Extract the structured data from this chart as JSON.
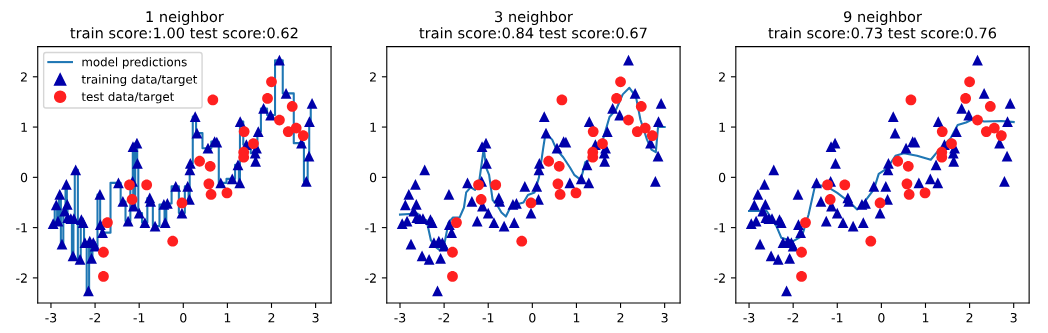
{
  "chart_data": [
    {
      "type": "scatter",
      "title": "1 neighbor\ntrain score:1.00 test score:0.62",
      "xlim": [
        -3.3,
        3.35
      ],
      "ylim": [
        -2.5,
        2.6
      ],
      "xticks": [
        -3,
        -2,
        -1,
        0,
        1,
        2,
        3
      ],
      "yticks": [
        -2,
        -1,
        0,
        1,
        2
      ],
      "grid": false,
      "legend": "top left",
      "series": [
        {
          "type": "step",
          "name": "model predictions",
          "color": "#1f77b4",
          "x": [
            -2.95,
            -2.88,
            -2.84,
            -2.8,
            -2.75,
            -2.69,
            -2.65,
            -2.63,
            -2.62,
            -2.55,
            -2.5,
            -2.48,
            -2.44,
            -2.34,
            -2.31,
            -2.27,
            -2.23,
            -2.15,
            -2.12,
            -2.08,
            -2.04,
            -2.0,
            -1.89,
            -1.88,
            -1.83,
            -1.47,
            -1.37,
            -1.25,
            -1.15,
            -1.14,
            -1.13,
            -1.05,
            -1.04,
            -1.0,
            -0.87,
            -0.76,
            -0.74,
            -0.64,
            -0.44,
            -0.41,
            -0.36,
            -0.17,
            -0.03,
            0.1,
            0.14,
            0.15,
            0.16,
            0.27,
            0.31,
            0.56,
            0.71,
            0.76,
            0.85,
            1.11,
            1.24,
            1.28,
            1.29,
            1.43,
            1.63,
            1.64,
            1.66,
            1.7,
            1.82,
            1.98,
            2.18,
            2.33,
            2.68,
            2.79,
            2.85,
            2.86,
            2.92
          ],
          "values": [
            -0.92,
            -0.55,
            -0.87,
            -0.34,
            -1.33,
            -0.67,
            -0.14,
            -0.54,
            -0.8,
            -0.82,
            -1.56,
            -0.82,
            0.15,
            -1.63,
            -0.84,
            -0.9,
            -1.3,
            -2.26,
            -1.27,
            -1.61,
            -1.3,
            -1.37,
            -0.34,
            -0.94,
            -1.1,
            -0.11,
            -0.48,
            -0.87,
            -0.08,
            0.61,
            -0.57,
            0.68,
            0.28,
            -0.71,
            -0.9,
            -0.41,
            -0.48,
            -0.97,
            -0.54,
            -0.9,
            -0.52,
            -0.18,
            -0.71,
            -0.18,
            -0.44,
            0.15,
            0.28,
            1.21,
            0.88,
            0.58,
            0.71,
            0.7,
            -0.11,
            -0.03,
            0.25,
            -0.11,
            1.11,
            0.65,
            0.48,
            0.32,
            0.58,
            0.91,
            1.37,
            1.24,
            2.33,
            1.67,
            0.68,
            -0.08,
            0.42,
            1.11,
            1.47
          ]
        },
        {
          "type": "scatter",
          "name": "training data/target",
          "color": "#0000aa",
          "marker": "triangle",
          "x": [
            -2.95,
            -2.88,
            -2.84,
            -2.8,
            -2.75,
            -2.69,
            -2.65,
            -2.63,
            -2.62,
            -2.55,
            -2.5,
            -2.48,
            -2.44,
            -2.34,
            -2.31,
            -2.27,
            -2.23,
            -2.15,
            -2.12,
            -2.08,
            -2.04,
            -2.0,
            -1.89,
            -1.88,
            -1.83,
            -1.47,
            -1.37,
            -1.25,
            -1.15,
            -1.14,
            -1.13,
            -1.05,
            -1.04,
            -1.0,
            -0.87,
            -0.76,
            -0.74,
            -0.64,
            -0.44,
            -0.41,
            -0.36,
            -0.17,
            -0.03,
            0.1,
            0.14,
            0.15,
            0.16,
            0.27,
            0.31,
            0.56,
            0.71,
            0.76,
            0.85,
            1.11,
            1.24,
            1.28,
            1.29,
            1.43,
            1.63,
            1.64,
            1.66,
            1.7,
            1.82,
            1.98,
            2.18,
            2.33,
            2.68,
            2.79,
            2.85,
            2.86,
            2.92
          ],
          "values": [
            -0.92,
            -0.55,
            -0.87,
            -0.34,
            -1.33,
            -0.67,
            -0.14,
            -0.54,
            -0.8,
            -0.82,
            -1.56,
            -0.82,
            0.15,
            -1.63,
            -0.84,
            -0.9,
            -1.3,
            -2.26,
            -1.27,
            -1.61,
            -1.3,
            -1.37,
            -0.34,
            -0.94,
            -1.1,
            -0.11,
            -0.48,
            -0.87,
            -0.08,
            0.61,
            -0.57,
            0.68,
            0.28,
            -0.71,
            -0.9,
            -0.41,
            -0.48,
            -0.97,
            -0.54,
            -0.9,
            -0.52,
            -0.18,
            -0.71,
            -0.18,
            -0.44,
            0.15,
            0.28,
            1.21,
            0.88,
            0.58,
            0.71,
            0.7,
            -0.11,
            -0.03,
            0.25,
            -0.11,
            1.11,
            0.65,
            0.48,
            0.32,
            0.58,
            0.91,
            1.37,
            1.24,
            2.33,
            1.67,
            0.68,
            -0.08,
            0.42,
            1.11,
            1.47
          ]
        },
        {
          "type": "scatter",
          "name": "test data/target",
          "color": "#ff2020",
          "marker": "circle",
          "x": [
            -1.72,
            -1.81,
            -1.81,
            -1.22,
            -1.16,
            -0.83,
            -0.24,
            -0.03,
            0.37,
            0.61,
            0.67,
            0.58,
            0.63,
            0.99,
            1.38,
            1.37,
            1.37,
            1.59,
            1.91,
            2.0,
            2.18,
            2.47,
            2.38,
            2.56,
            2.72
          ],
          "values": [
            -0.9,
            -1.49,
            -1.97,
            -0.15,
            -0.44,
            -0.15,
            -1.27,
            -0.51,
            0.32,
            0.22,
            1.54,
            -0.13,
            -0.34,
            -0.31,
            0.91,
            0.5,
            0.4,
            0.67,
            1.57,
            1.9,
            1.14,
            1.41,
            0.91,
            0.98,
            0.83
          ]
        }
      ]
    },
    {
      "type": "scatter",
      "title": "3 neighbor\ntrain score:0.84 test score:0.67",
      "xlim": [
        -3.3,
        3.35
      ],
      "ylim": [
        -2.5,
        2.6
      ],
      "xticks": [
        -3,
        -2,
        -1,
        0,
        1,
        2,
        3
      ],
      "yticks": [
        -2,
        -1,
        0,
        1,
        2
      ],
      "grid": false,
      "series": [
        {
          "type": "line",
          "color": "#1f77b4",
          "x": [
            -3.0,
            -2.6,
            -2.5,
            -2.4,
            -2.3,
            -2.2,
            -2.1,
            -2.0,
            -1.9,
            -1.8,
            -1.65,
            -1.55,
            -1.5,
            -1.4,
            -1.3,
            -1.2,
            -1.1,
            -1.05,
            -0.98,
            -0.9,
            -0.8,
            -0.7,
            -0.6,
            -0.5,
            -0.4,
            -0.2,
            -0.1,
            0.05,
            0.15,
            0.25,
            0.3,
            0.45,
            0.55,
            0.7,
            0.85,
            0.95,
            1.1,
            1.2,
            1.3,
            1.45,
            1.6,
            1.75,
            1.9,
            2.05,
            2.2,
            2.35,
            2.45,
            2.6,
            2.7,
            2.8,
            2.85,
            3.0
          ],
          "values": [
            -0.74,
            -0.72,
            -0.9,
            -0.85,
            -1.25,
            -1.38,
            -1.45,
            -1.35,
            -0.9,
            -0.8,
            -0.8,
            -0.6,
            -0.3,
            -0.2,
            -0.25,
            -0.05,
            0.58,
            0.2,
            0.05,
            -0.45,
            -0.55,
            -0.7,
            -0.78,
            -0.6,
            -0.55,
            -0.5,
            -0.35,
            -0.3,
            0.0,
            0.6,
            0.88,
            0.75,
            0.55,
            0.4,
            0.2,
            0.05,
            -0.05,
            0.3,
            0.35,
            0.55,
            0.75,
            1.2,
            1.35,
            1.65,
            1.78,
            1.6,
            1.15,
            0.75,
            0.55,
            0.5,
            1.0,
            1.0
          ]
        },
        {
          "type": "scatter",
          "color": "#0000aa",
          "marker": "triangle",
          "x": [
            -2.95,
            -2.88,
            -2.84,
            -2.8,
            -2.75,
            -2.69,
            -2.65,
            -2.63,
            -2.62,
            -2.55,
            -2.5,
            -2.48,
            -2.44,
            -2.34,
            -2.31,
            -2.27,
            -2.23,
            -2.15,
            -2.12,
            -2.08,
            -2.04,
            -2.0,
            -1.89,
            -1.88,
            -1.83,
            -1.47,
            -1.37,
            -1.25,
            -1.15,
            -1.14,
            -1.13,
            -1.05,
            -1.04,
            -1.0,
            -0.87,
            -0.76,
            -0.74,
            -0.64,
            -0.44,
            -0.41,
            -0.36,
            -0.17,
            -0.03,
            0.1,
            0.14,
            0.15,
            0.16,
            0.27,
            0.31,
            0.56,
            0.71,
            0.76,
            0.85,
            1.11,
            1.24,
            1.28,
            1.29,
            1.43,
            1.63,
            1.64,
            1.66,
            1.7,
            1.82,
            1.98,
            2.18,
            2.33,
            2.68,
            2.79,
            2.85,
            2.86,
            2.92
          ],
          "values": [
            -0.92,
            -0.55,
            -0.87,
            -0.34,
            -1.33,
            -0.67,
            -0.14,
            -0.54,
            -0.8,
            -0.82,
            -1.56,
            -0.82,
            0.15,
            -1.63,
            -0.84,
            -0.9,
            -1.3,
            -2.26,
            -1.27,
            -1.61,
            -1.3,
            -1.37,
            -0.34,
            -0.94,
            -1.1,
            -0.11,
            -0.48,
            -0.87,
            -0.08,
            0.61,
            -0.57,
            0.68,
            0.28,
            -0.71,
            -0.9,
            -0.41,
            -0.48,
            -0.97,
            -0.54,
            -0.9,
            -0.52,
            -0.18,
            -0.71,
            -0.18,
            -0.44,
            0.15,
            0.28,
            1.21,
            0.88,
            0.58,
            0.71,
            0.7,
            -0.11,
            -0.03,
            0.25,
            -0.11,
            1.11,
            0.65,
            0.48,
            0.32,
            0.58,
            0.91,
            1.37,
            1.24,
            2.33,
            1.67,
            0.68,
            -0.08,
            0.42,
            1.11,
            1.47
          ]
        },
        {
          "type": "scatter",
          "color": "#ff2020",
          "marker": "circle",
          "x": [
            -1.72,
            -1.81,
            -1.81,
            -1.22,
            -1.16,
            -0.83,
            -0.24,
            -0.03,
            0.37,
            0.61,
            0.67,
            0.58,
            0.63,
            0.99,
            1.38,
            1.37,
            1.37,
            1.59,
            1.91,
            2.0,
            2.18,
            2.47,
            2.38,
            2.56,
            2.72
          ],
          "values": [
            -0.9,
            -1.49,
            -1.97,
            -0.15,
            -0.44,
            -0.15,
            -1.27,
            -0.51,
            0.32,
            0.22,
            1.54,
            -0.13,
            -0.34,
            -0.31,
            0.91,
            0.5,
            0.4,
            0.67,
            1.57,
            1.9,
            1.14,
            1.41,
            0.91,
            0.98,
            0.83
          ]
        }
      ]
    },
    {
      "type": "scatter",
      "title": "9 neighbor\ntrain score:0.73 test score:0.76",
      "xlim": [
        -3.3,
        3.35
      ],
      "ylim": [
        -2.5,
        2.6
      ],
      "xticks": [
        -3,
        -2,
        -1,
        0,
        1,
        2,
        3
      ],
      "yticks": [
        -2,
        -1,
        0,
        1,
        2
      ],
      "grid": false,
      "series": [
        {
          "type": "line",
          "color": "#1f77b4",
          "x": [
            -3.0,
            -2.6,
            -2.38,
            -2.27,
            -2.0,
            -1.8,
            -1.65,
            -1.5,
            -1.24,
            -1.0,
            -0.7,
            -0.55,
            -0.4,
            -0.17,
            -0.06,
            0.13,
            0.32,
            0.51,
            0.81,
            1.12,
            1.31,
            1.57,
            1.73,
            1.92,
            2.1,
            2.33,
            2.72,
            3.0
          ],
          "values": [
            -0.67,
            -0.67,
            -0.97,
            -1.2,
            -1.27,
            -1.17,
            -0.74,
            -0.15,
            -0.18,
            -0.31,
            -0.51,
            -0.64,
            -0.51,
            -0.24,
            0.07,
            0.18,
            0.43,
            0.48,
            0.43,
            0.35,
            0.55,
            0.78,
            1.04,
            1.09,
            1.17,
            1.11,
            1.12,
            1.1
          ]
        },
        {
          "type": "scatter",
          "color": "#0000aa",
          "marker": "triangle",
          "x": [
            -2.95,
            -2.88,
            -2.84,
            -2.8,
            -2.75,
            -2.69,
            -2.65,
            -2.63,
            -2.62,
            -2.55,
            -2.5,
            -2.48,
            -2.44,
            -2.34,
            -2.31,
            -2.27,
            -2.23,
            -2.15,
            -2.12,
            -2.08,
            -2.04,
            -2.0,
            -1.89,
            -1.88,
            -1.83,
            -1.47,
            -1.37,
            -1.25,
            -1.15,
            -1.14,
            -1.13,
            -1.05,
            -1.04,
            -1.0,
            -0.87,
            -0.76,
            -0.74,
            -0.64,
            -0.44,
            -0.41,
            -0.36,
            -0.17,
            -0.03,
            0.1,
            0.14,
            0.15,
            0.16,
            0.27,
            0.31,
            0.56,
            0.71,
            0.76,
            0.85,
            1.11,
            1.24,
            1.28,
            1.29,
            1.43,
            1.63,
            1.64,
            1.66,
            1.7,
            1.82,
            1.98,
            2.18,
            2.33,
            2.68,
            2.79,
            2.85,
            2.86,
            2.92
          ],
          "values": [
            -0.92,
            -0.55,
            -0.87,
            -0.34,
            -1.33,
            -0.67,
            -0.14,
            -0.54,
            -0.8,
            -0.82,
            -1.56,
            -0.82,
            0.15,
            -1.63,
            -0.84,
            -0.9,
            -1.3,
            -2.26,
            -1.27,
            -1.61,
            -1.3,
            -1.37,
            -0.34,
            -0.94,
            -1.1,
            -0.11,
            -0.48,
            -0.87,
            -0.08,
            0.61,
            -0.57,
            0.68,
            0.28,
            -0.71,
            -0.9,
            -0.41,
            -0.48,
            -0.97,
            -0.54,
            -0.9,
            -0.52,
            -0.18,
            -0.71,
            -0.18,
            -0.44,
            0.15,
            0.28,
            1.21,
            0.88,
            0.58,
            0.71,
            0.7,
            -0.11,
            -0.03,
            0.25,
            -0.11,
            1.11,
            0.65,
            0.48,
            0.32,
            0.58,
            0.91,
            1.37,
            1.24,
            2.33,
            1.67,
            0.68,
            -0.08,
            0.42,
            1.11,
            1.47
          ]
        },
        {
          "type": "scatter",
          "color": "#ff2020",
          "marker": "circle",
          "x": [
            -1.72,
            -1.81,
            -1.81,
            -1.22,
            -1.16,
            -0.83,
            -0.24,
            -0.03,
            0.37,
            0.61,
            0.67,
            0.58,
            0.63,
            0.99,
            1.38,
            1.37,
            1.37,
            1.59,
            1.91,
            2.0,
            2.18,
            2.47,
            2.38,
            2.56,
            2.72
          ],
          "values": [
            -0.9,
            -1.49,
            -1.97,
            -0.15,
            -0.44,
            -0.15,
            -1.27,
            -0.51,
            0.32,
            0.22,
            1.54,
            -0.13,
            -0.34,
            -0.31,
            0.91,
            0.5,
            0.4,
            0.67,
            1.57,
            1.9,
            1.14,
            1.41,
            0.91,
            0.98,
            0.83
          ]
        }
      ]
    }
  ]
}
